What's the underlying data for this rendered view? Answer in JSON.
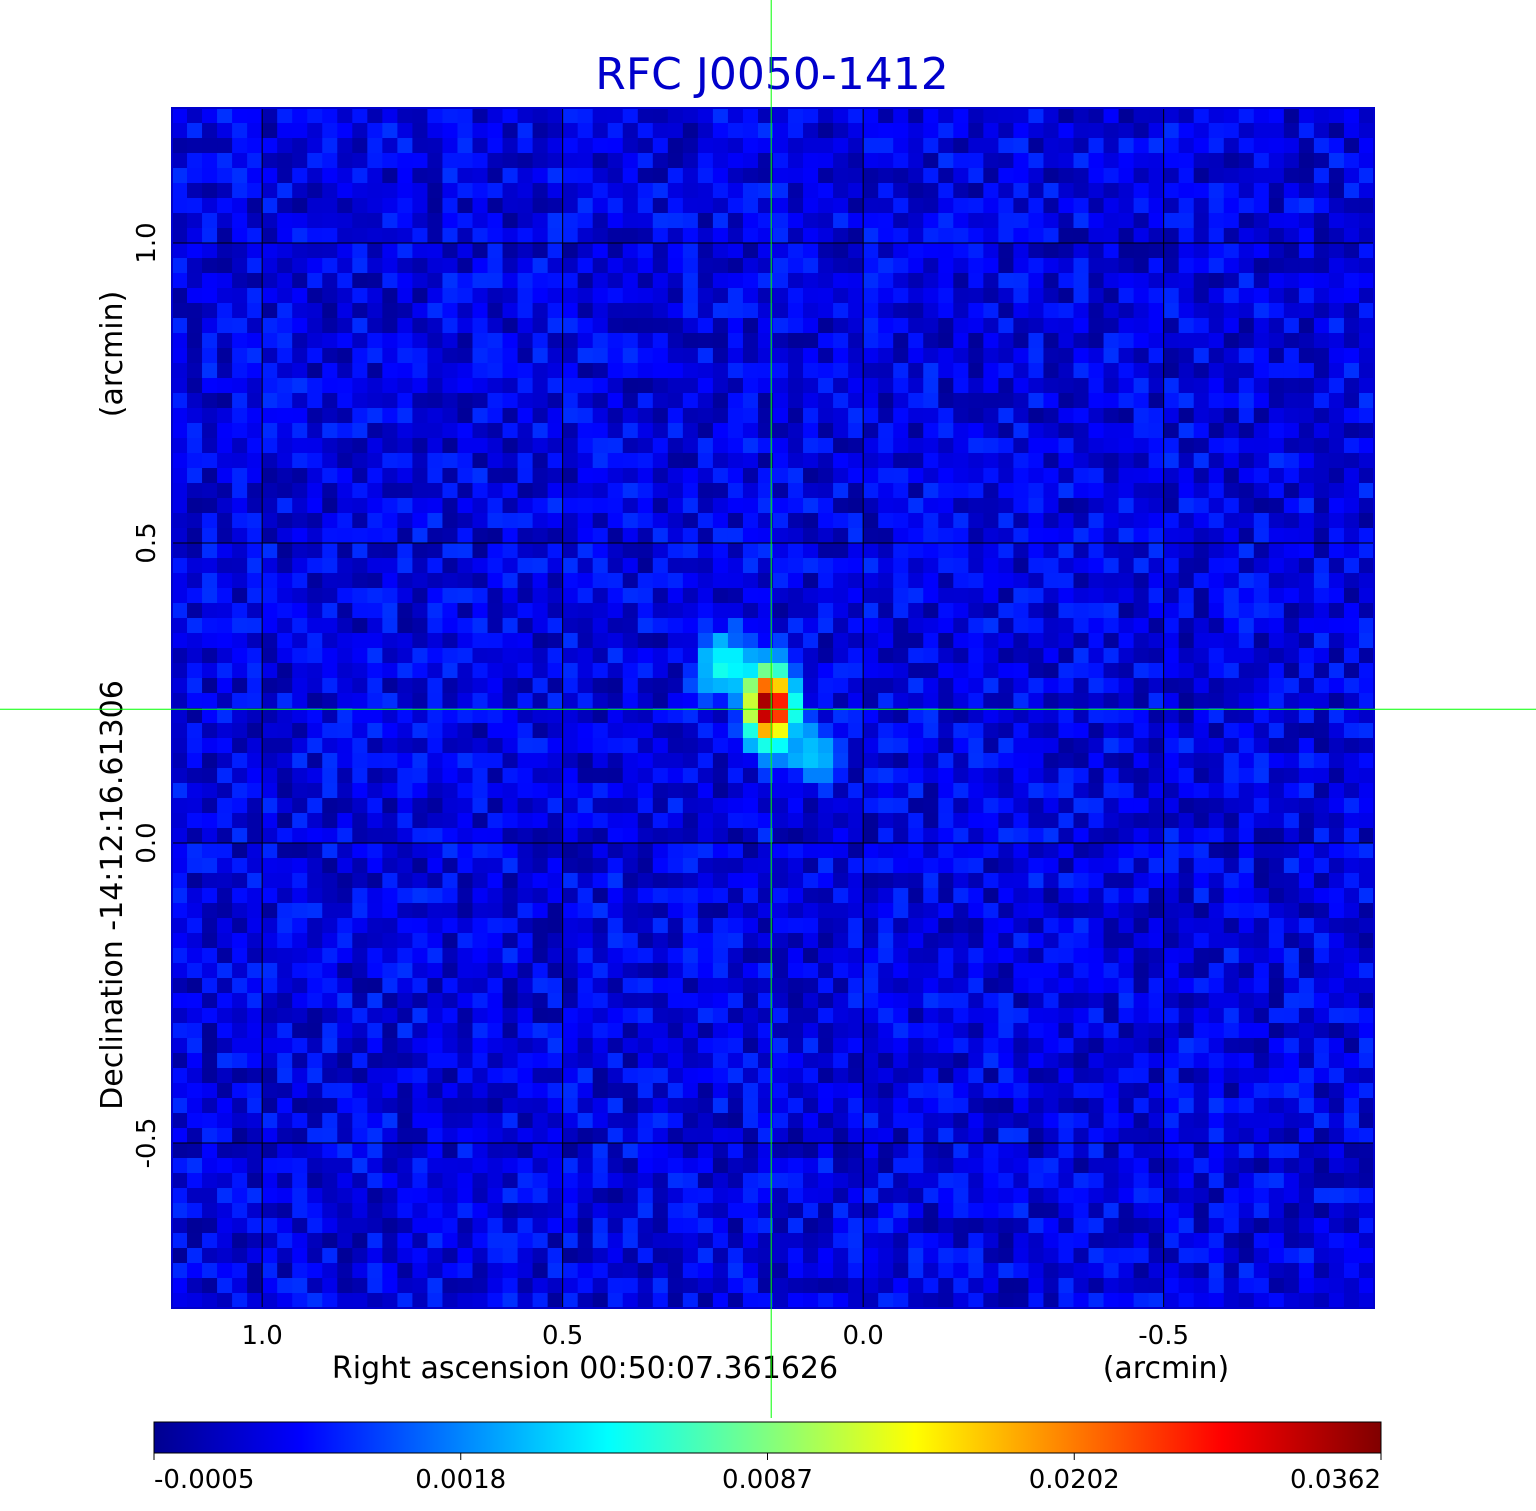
{
  "chart_data": {
    "type": "heatmap",
    "title": "RFC J0050-1412",
    "xlabel": "Right ascension  00:50:07.361626",
    "xunit": "(arcmin)",
    "ylabel": "Declination  -14:12:16.61306",
    "yunit": "(arcmin)",
    "xlim": [
      1.15,
      -0.85
    ],
    "ylim": [
      -0.775,
      1.225
    ],
    "x_ticks": [
      "1.0",
      "0.5",
      "0.0",
      "-0.5"
    ],
    "x_tick_values": [
      1.0,
      0.5,
      0.0,
      -0.5
    ],
    "y_ticks": [
      "1.0",
      "0.5",
      "0.0",
      "-0.5"
    ],
    "y_tick_values": [
      1.0,
      0.5,
      0.0,
      -0.5
    ],
    "grid": true,
    "colormap": "jet",
    "colorbar": {
      "ticks": [
        "-0.0005",
        "0.0018",
        "0.0087",
        "0.0202",
        "0.0362"
      ],
      "values": [
        -0.0005,
        0.0018,
        0.0087,
        0.0202,
        0.0362
      ]
    },
    "crosshair": {
      "x": 0.153,
      "y": 0.223,
      "color": "#00ff00"
    },
    "sources": [
      {
        "x": 0.155,
        "y": 0.228,
        "peak": 0.0362
      },
      {
        "x": 0.23,
        "y": 0.295,
        "peak": 0.006
      },
      {
        "x": 0.085,
        "y": 0.15,
        "peak": 0.003
      }
    ],
    "background_level": 0.0004
  },
  "colors": {
    "title": "#0000cc",
    "grid": "#000000",
    "crosshair": "#00ff00",
    "frame": "#0000cc"
  }
}
